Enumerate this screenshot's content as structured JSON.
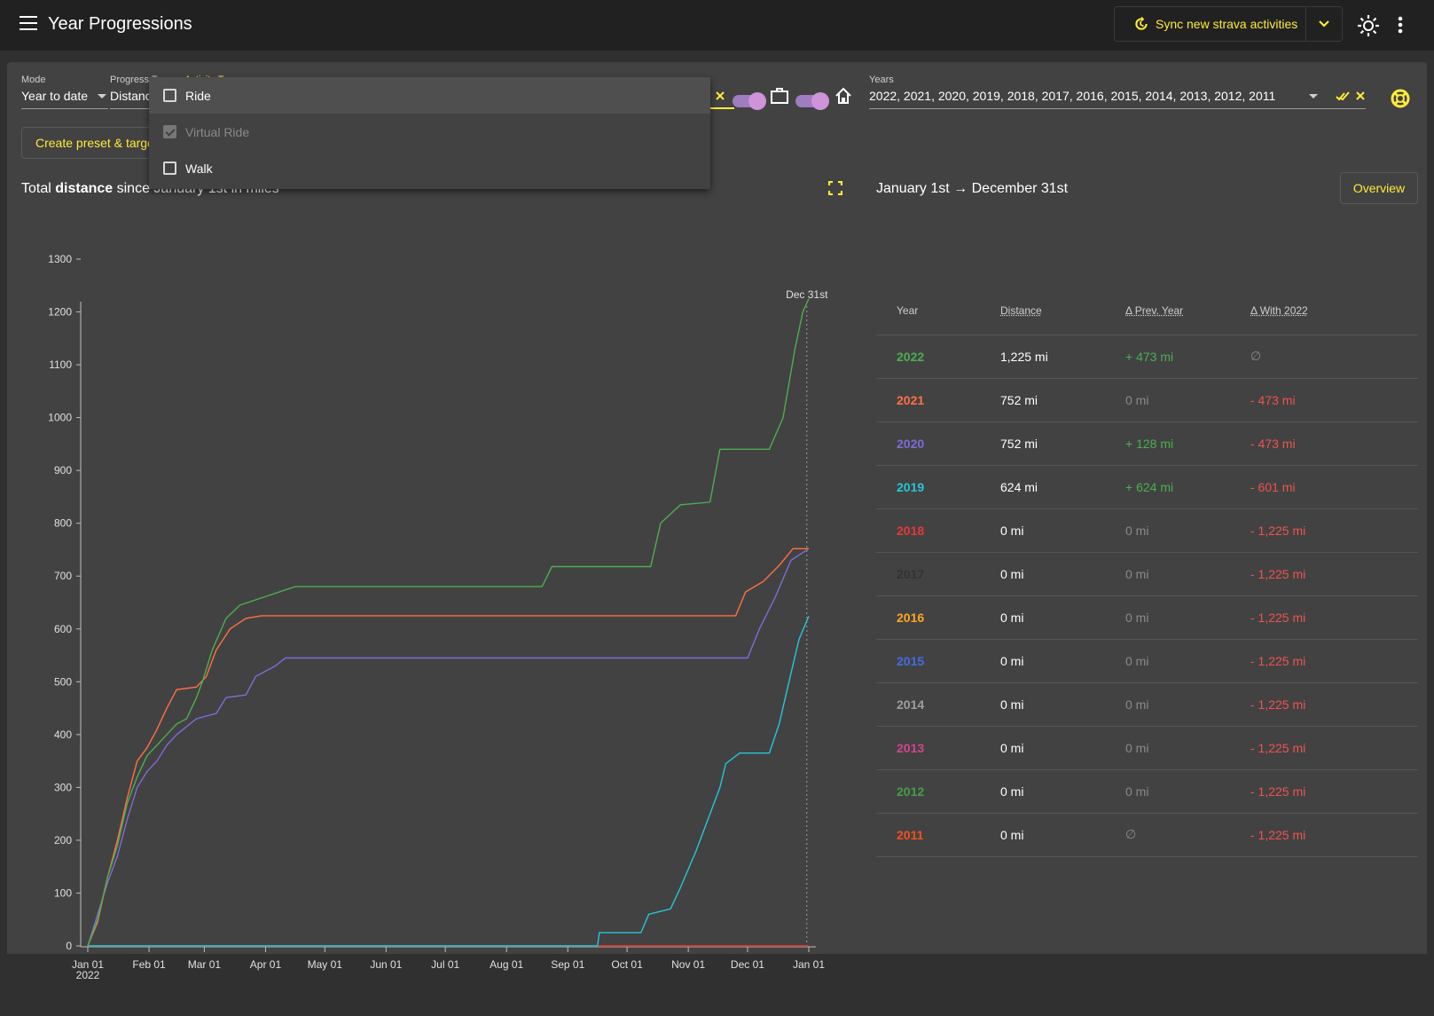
{
  "app": {
    "title": "Year Progressions"
  },
  "toolbar": {
    "sync_label": "Sync new strava activities"
  },
  "filters": {
    "mode": {
      "label": "Mode",
      "value": "Year to date"
    },
    "progress_type": {
      "label": "Progress Type",
      "value": "Distance"
    },
    "activity_types": {
      "label": "Activity Types"
    },
    "years": {
      "label": "Years",
      "value": "2022, 2021, 2020, 2019, 2018, 2017, 2016, 2015, 2014, 2013, 2012, 2011"
    }
  },
  "dropdown": {
    "items": [
      {
        "label": "Ride",
        "checked": false,
        "disabled": false,
        "highlighted": true
      },
      {
        "label": "Virtual Ride",
        "checked": true,
        "disabled": true,
        "highlighted": false
      },
      {
        "label": "Walk",
        "checked": false,
        "disabled": false,
        "highlighted": false
      }
    ]
  },
  "preset_button": "Create preset & target",
  "chart_title": {
    "prefix": "Total ",
    "bold": "distance",
    "suffix": " since January 1st in miles"
  },
  "range": {
    "start": "January 1st",
    "arrow": "→",
    "end": "December 31st"
  },
  "overview_button": "Overview",
  "colors": {
    "accent": "#ffeb3b",
    "2022": "#4caf50",
    "2021": "#ff7043",
    "2020": "#7e6cd6",
    "2019": "#26c6da",
    "2018": "#e53935",
    "2017": "#333333",
    "2016": "#ffa726",
    "2015": "#3f6fe0",
    "2014": "#9e9e9e",
    "2013": "#d4448f",
    "2012": "#43a047",
    "2011": "#f4511e"
  },
  "table": {
    "headers": [
      "Year",
      "Distance",
      "Δ Prev. Year",
      "Δ With 2022"
    ],
    "rows": [
      {
        "year": "2022",
        "distance": "1,225 mi",
        "prev": "+ 473 mi",
        "prev_tone": "green",
        "with": "∅",
        "with_tone": "grey"
      },
      {
        "year": "2021",
        "distance": "752 mi",
        "prev": "0 mi",
        "prev_tone": "grey",
        "with": "- 473 mi",
        "with_tone": "red"
      },
      {
        "year": "2020",
        "distance": "752 mi",
        "prev": "+ 128 mi",
        "prev_tone": "green",
        "with": "- 473 mi",
        "with_tone": "red"
      },
      {
        "year": "2019",
        "distance": "624 mi",
        "prev": "+ 624 mi",
        "prev_tone": "green",
        "with": "- 601 mi",
        "with_tone": "red"
      },
      {
        "year": "2018",
        "distance": "0 mi",
        "prev": "0 mi",
        "prev_tone": "grey",
        "with": "- 1,225 mi",
        "with_tone": "red"
      },
      {
        "year": "2017",
        "distance": "0 mi",
        "prev": "0 mi",
        "prev_tone": "grey",
        "with": "- 1,225 mi",
        "with_tone": "red"
      },
      {
        "year": "2016",
        "distance": "0 mi",
        "prev": "0 mi",
        "prev_tone": "grey",
        "with": "- 1,225 mi",
        "with_tone": "red"
      },
      {
        "year": "2015",
        "distance": "0 mi",
        "prev": "0 mi",
        "prev_tone": "grey",
        "with": "- 1,225 mi",
        "with_tone": "red"
      },
      {
        "year": "2014",
        "distance": "0 mi",
        "prev": "0 mi",
        "prev_tone": "grey",
        "with": "- 1,225 mi",
        "with_tone": "red"
      },
      {
        "year": "2013",
        "distance": "0 mi",
        "prev": "0 mi",
        "prev_tone": "grey",
        "with": "- 1,225 mi",
        "with_tone": "red"
      },
      {
        "year": "2012",
        "distance": "0 mi",
        "prev": "0 mi",
        "prev_tone": "grey",
        "with": "- 1,225 mi",
        "with_tone": "red"
      },
      {
        "year": "2011",
        "distance": "0 mi",
        "prev": "∅",
        "prev_tone": "grey",
        "with": "- 1,225 mi",
        "with_tone": "red"
      }
    ]
  },
  "chart_data": {
    "type": "line",
    "ylim": [
      0,
      1300
    ],
    "y_ticks": [
      0,
      100,
      200,
      300,
      400,
      500,
      600,
      700,
      800,
      900,
      1000,
      1100,
      1200,
      1300
    ],
    "x_ticks": [
      "Jan 01",
      "Feb 01",
      "Mar 01",
      "Apr 01",
      "May 01",
      "Jun 01",
      "Jul 01",
      "Aug 01",
      "Sep 01",
      "Oct 01",
      "Nov 01",
      "Dec 01",
      "Jan 01"
    ],
    "x_tick_days": [
      0,
      31,
      59,
      90,
      120,
      151,
      181,
      212,
      243,
      273,
      304,
      334,
      365
    ],
    "x_sublabel": "2022",
    "marker_label": "Dec 31st",
    "marker_day": 364,
    "series": [
      {
        "name": "2022",
        "color": "#4caf50",
        "points": [
          [
            0,
            0
          ],
          [
            5,
            50
          ],
          [
            10,
            130
          ],
          [
            15,
            190
          ],
          [
            20,
            270
          ],
          [
            25,
            320
          ],
          [
            30,
            360
          ],
          [
            35,
            380
          ],
          [
            40,
            400
          ],
          [
            45,
            420
          ],
          [
            50,
            430
          ],
          [
            55,
            470
          ],
          [
            58,
            500
          ],
          [
            63,
            560
          ],
          [
            70,
            620
          ],
          [
            77,
            645
          ],
          [
            85,
            655
          ],
          [
            105,
            680
          ],
          [
            230,
            680
          ],
          [
            235,
            718
          ],
          [
            285,
            718
          ],
          [
            290,
            800
          ],
          [
            300,
            835
          ],
          [
            315,
            840
          ],
          [
            320,
            940
          ],
          [
            345,
            940
          ],
          [
            352,
            1000
          ],
          [
            358,
            1130
          ],
          [
            362,
            1200
          ],
          [
            365,
            1225
          ]
        ]
      },
      {
        "name": "2021",
        "color": "#ff7043",
        "points": [
          [
            0,
            0
          ],
          [
            5,
            45
          ],
          [
            10,
            130
          ],
          [
            15,
            200
          ],
          [
            20,
            280
          ],
          [
            25,
            350
          ],
          [
            30,
            375
          ],
          [
            35,
            410
          ],
          [
            40,
            450
          ],
          [
            45,
            485
          ],
          [
            55,
            490
          ],
          [
            60,
            510
          ],
          [
            65,
            560
          ],
          [
            72,
            600
          ],
          [
            80,
            620
          ],
          [
            88,
            625
          ],
          [
            328,
            625
          ],
          [
            333,
            670
          ],
          [
            342,
            690
          ],
          [
            350,
            720
          ],
          [
            357,
            752
          ],
          [
            365,
            752
          ]
        ]
      },
      {
        "name": "2020",
        "color": "#7e6cd6",
        "points": [
          [
            0,
            0
          ],
          [
            5,
            60
          ],
          [
            10,
            120
          ],
          [
            15,
            170
          ],
          [
            20,
            240
          ],
          [
            25,
            300
          ],
          [
            30,
            330
          ],
          [
            35,
            350
          ],
          [
            40,
            380
          ],
          [
            45,
            400
          ],
          [
            55,
            430
          ],
          [
            65,
            440
          ],
          [
            70,
            470
          ],
          [
            80,
            475
          ],
          [
            85,
            510
          ],
          [
            95,
            530
          ],
          [
            100,
            545
          ],
          [
            334,
            545
          ],
          [
            340,
            600
          ],
          [
            348,
            660
          ],
          [
            356,
            730
          ],
          [
            365,
            752
          ]
        ]
      },
      {
        "name": "2019",
        "color": "#26c6da",
        "points": [
          [
            0,
            0
          ],
          [
            258,
            0
          ],
          [
            259,
            25
          ],
          [
            280,
            25
          ],
          [
            284,
            60
          ],
          [
            295,
            70
          ],
          [
            300,
            110
          ],
          [
            308,
            180
          ],
          [
            315,
            250
          ],
          [
            320,
            300
          ],
          [
            323,
            345
          ],
          [
            330,
            365
          ],
          [
            345,
            365
          ],
          [
            350,
            420
          ],
          [
            355,
            500
          ],
          [
            360,
            580
          ],
          [
            365,
            624
          ]
        ]
      },
      {
        "name": "2018",
        "color": "#e53935",
        "points": [
          [
            0,
            0
          ],
          [
            365,
            0
          ]
        ]
      },
      {
        "name": "2017",
        "color": "#333333",
        "points": [
          [
            0,
            0
          ],
          [
            365,
            0
          ]
        ]
      },
      {
        "name": "2016",
        "color": "#ffa726",
        "points": [
          [
            0,
            0
          ],
          [
            365,
            0
          ]
        ]
      }
    ]
  }
}
